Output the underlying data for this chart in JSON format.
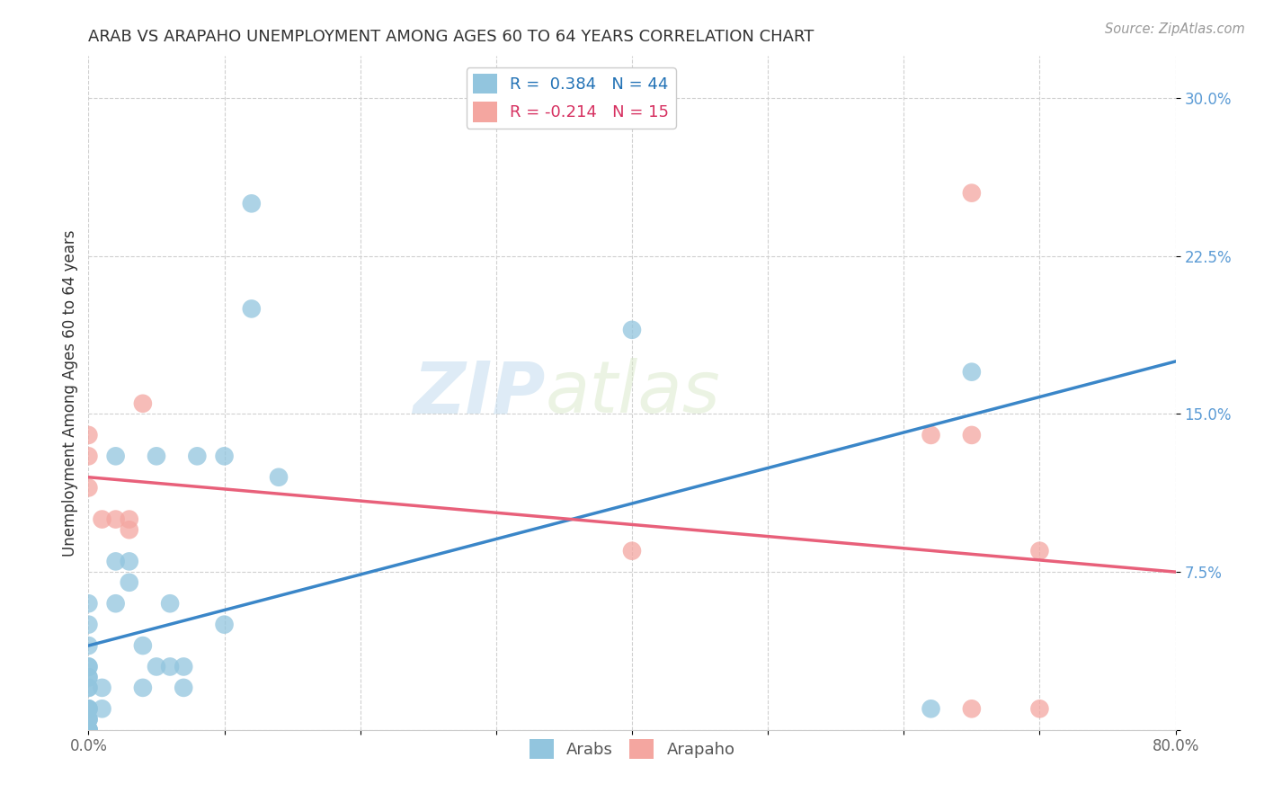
{
  "title": "ARAB VS ARAPAHO UNEMPLOYMENT AMONG AGES 60 TO 64 YEARS CORRELATION CHART",
  "source": "Source: ZipAtlas.com",
  "ylabel": "Unemployment Among Ages 60 to 64 years",
  "xlim": [
    0.0,
    0.8
  ],
  "ylim": [
    0.0,
    0.32
  ],
  "xticks": [
    0.0,
    0.1,
    0.2,
    0.3,
    0.4,
    0.5,
    0.6,
    0.7,
    0.8
  ],
  "xticklabels": [
    "0.0%",
    "",
    "",
    "",
    "",
    "",
    "",
    "",
    "80.0%"
  ],
  "yticks": [
    0.0,
    0.075,
    0.15,
    0.225,
    0.3
  ],
  "yticklabels": [
    "",
    "7.5%",
    "15.0%",
    "22.5%",
    "30.0%"
  ],
  "arab_R": 0.384,
  "arab_N": 44,
  "arapaho_R": -0.214,
  "arapaho_N": 15,
  "arab_color": "#92c5de",
  "arapaho_color": "#f4a6a0",
  "arab_line_color": "#3a86c8",
  "arapaho_line_color": "#e8607a",
  "watermark_zip": "ZIP",
  "watermark_atlas": "atlas",
  "arab_x": [
    0.0,
    0.0,
    0.0,
    0.0,
    0.0,
    0.0,
    0.0,
    0.0,
    0.0,
    0.0,
    0.0,
    0.0,
    0.0,
    0.0,
    0.0,
    0.0,
    0.0,
    0.0,
    0.0,
    0.0,
    0.01,
    0.01,
    0.02,
    0.02,
    0.02,
    0.03,
    0.03,
    0.04,
    0.04,
    0.05,
    0.05,
    0.06,
    0.06,
    0.07,
    0.07,
    0.08,
    0.1,
    0.1,
    0.12,
    0.12,
    0.14,
    0.4,
    0.62,
    0.65
  ],
  "arab_y": [
    0.0,
    0.0,
    0.0,
    0.0,
    0.0,
    0.005,
    0.005,
    0.005,
    0.01,
    0.01,
    0.01,
    0.02,
    0.02,
    0.025,
    0.025,
    0.03,
    0.03,
    0.04,
    0.05,
    0.06,
    0.01,
    0.02,
    0.06,
    0.08,
    0.13,
    0.07,
    0.08,
    0.02,
    0.04,
    0.03,
    0.13,
    0.03,
    0.06,
    0.02,
    0.03,
    0.13,
    0.05,
    0.13,
    0.2,
    0.25,
    0.12,
    0.19,
    0.01,
    0.17
  ],
  "arapaho_x": [
    0.0,
    0.0,
    0.0,
    0.01,
    0.02,
    0.03,
    0.03,
    0.04,
    0.65,
    0.7,
    0.65,
    0.4,
    0.62,
    0.65,
    0.7
  ],
  "arapaho_y": [
    0.115,
    0.13,
    0.14,
    0.1,
    0.1,
    0.095,
    0.1,
    0.155,
    0.255,
    0.085,
    0.14,
    0.085,
    0.14,
    0.01,
    0.01
  ],
  "background_color": "#ffffff",
  "grid_color": "#d0d0d0",
  "title_fontsize": 13,
  "label_fontsize": 12,
  "tick_fontsize": 12
}
